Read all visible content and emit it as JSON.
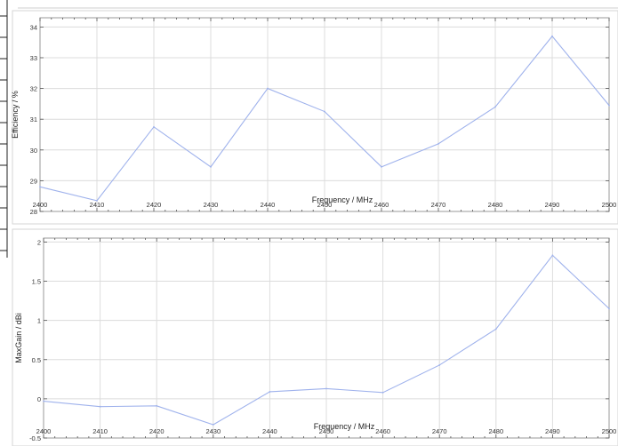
{
  "colors": {
    "line": "#9fb2ec",
    "grid": "#dcdcdc",
    "frame": "#9a9a9a",
    "left_strip": "#222222",
    "background": "#ffffff"
  },
  "chart_data": [
    {
      "type": "line",
      "xlabel": "Frequency / MHz",
      "ylabel": "Efficiency / %",
      "x": [
        2400,
        2410,
        2420,
        2430,
        2440,
        2450,
        2460,
        2470,
        2480,
        2490,
        2500
      ],
      "x_tick_labels": [
        "2400",
        "2410",
        "2420",
        "2430",
        "2440",
        "2450",
        "2460",
        "2470",
        "2480",
        "2490",
        "2500"
      ],
      "y_ticks": [
        28,
        29,
        30,
        31,
        32,
        33,
        34
      ],
      "y_tick_labels": [
        "28",
        "29",
        "30",
        "31",
        "32",
        "33",
        "34"
      ],
      "xlim": [
        2400,
        2500
      ],
      "ylim": [
        28,
        34.3
      ],
      "grid": true,
      "series": [
        {
          "values": [
            28.8,
            28.35,
            30.75,
            29.45,
            32.0,
            31.25,
            29.45,
            30.2,
            31.4,
            33.7,
            31.45
          ]
        }
      ]
    },
    {
      "type": "line",
      "xlabel": "Frequency / MHz",
      "ylabel": "MaxGain / dBi",
      "x": [
        2400,
        2410,
        2420,
        2430,
        2440,
        2450,
        2460,
        2470,
        2480,
        2490,
        2500
      ],
      "x_tick_labels": [
        "2400",
        "2410",
        "2420",
        "2430",
        "2440",
        "2450",
        "2460",
        "2470",
        "2480",
        "2490",
        "2500"
      ],
      "y_ticks": [
        -0.5,
        0,
        0.5,
        1,
        1.5,
        2
      ],
      "y_tick_labels": [
        "-0.5",
        "0",
        "0.5",
        "1",
        "1.5",
        "2"
      ],
      "xlim": [
        2400,
        2500
      ],
      "ylim": [
        -0.5,
        2.05
      ],
      "grid": true,
      "series": [
        {
          "values": [
            -0.03,
            -0.1,
            -0.09,
            -0.33,
            0.09,
            0.13,
            0.08,
            0.43,
            0.89,
            1.83,
            1.15
          ]
        }
      ]
    }
  ]
}
